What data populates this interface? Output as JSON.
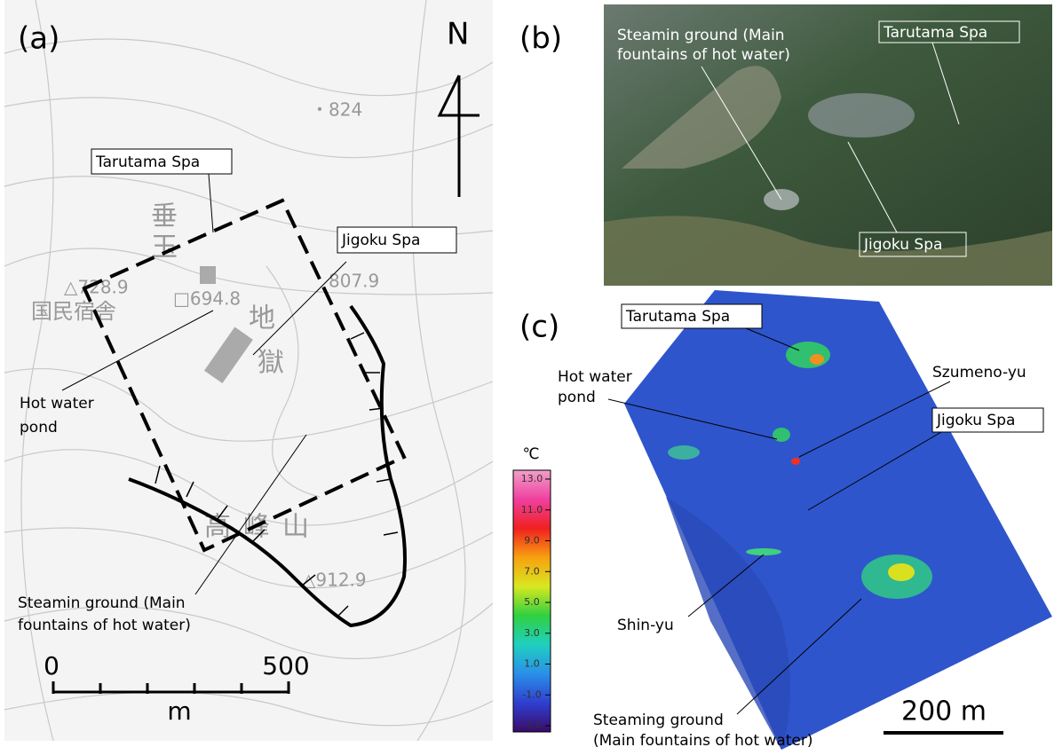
{
  "map_panel": {
    "tag": "(a)",
    "north": "N",
    "tarutama": "Tarutama Spa",
    "jigoku": "Jigoku Spa",
    "pond": [
      "Hot water",
      "pond"
    ],
    "steaming": [
      "Steamin ground (Main",
      "fountains of hot water)"
    ],
    "scale": {
      "start": "0",
      "end": "500",
      "unit": "m"
    },
    "map_labels": [
      "・824",
      "△728.9",
      "□694.8",
      "807.9",
      "△912.9",
      "垂",
      "玉",
      "国民宿舎",
      "地",
      "獄",
      "高峰山"
    ]
  },
  "photo_panel": {
    "tag": "(b)",
    "steaming": [
      "Steamin ground (Main",
      "fountains of hot water)"
    ],
    "tarutama": "Tarutama Spa",
    "jigoku": "Jigoku Spa"
  },
  "thermal_panel": {
    "tag": "(c)",
    "tarutama": "Tarutama Spa",
    "pond": [
      "Hot water",
      "pond"
    ],
    "szumeno": "Szumeno-yu",
    "jigoku": "Jigoku Spa",
    "shinyu": "Shin-yu",
    "steaming": [
      "Steaming ground",
      "(Main fountains of hot water)"
    ],
    "scale": "200 m",
    "colorbar": {
      "unit": "℃",
      "lim": [
        -3,
        13
      ],
      "ticks": [
        {
          "value": 13,
          "label": "13.0"
        },
        {
          "value": 11,
          "label": "11.0"
        },
        {
          "value": 9,
          "label": "9.0"
        },
        {
          "value": 7,
          "label": "7.0"
        },
        {
          "value": 5,
          "label": "5.0"
        },
        {
          "value": 3,
          "label": "3.0"
        },
        {
          "value": 1,
          "label": "1.0"
        },
        {
          "value": -1,
          "label": "-1.0"
        },
        {
          "value": -3,
          "label": "-3.0"
        }
      ],
      "colors": [
        "#3a0a6a",
        "#2f3fd0",
        "#2a8fe8",
        "#1fd0c0",
        "#30d040",
        "#d8e820",
        "#f8a010",
        "#f02020",
        "#f040a0",
        "#f0a0c8"
      ]
    }
  }
}
